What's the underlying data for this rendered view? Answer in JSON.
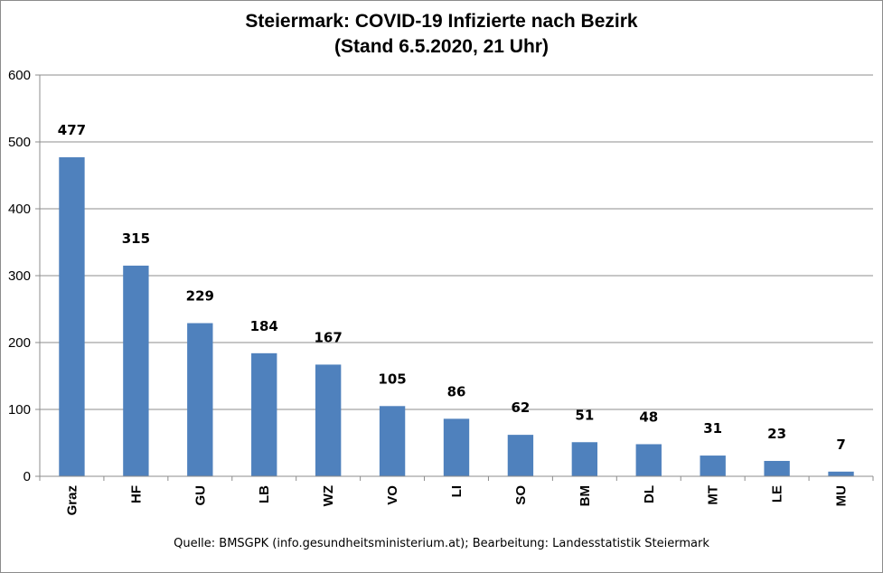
{
  "chart_data": {
    "type": "bar",
    "title_line1": "Steiermark:  COVID-19 Infizierte nach Bezirk",
    "title_line2": "(Stand 6.5.2020, 21 Uhr)",
    "categories": [
      "Graz",
      "HF",
      "GU",
      "LB",
      "WZ",
      "VO",
      "LI",
      "SO",
      "BM",
      "DL",
      "MT",
      "LE",
      "MU"
    ],
    "values": [
      477,
      315,
      229,
      184,
      167,
      105,
      86,
      62,
      51,
      48,
      31,
      23,
      7
    ],
    "ylim": [
      0,
      600
    ],
    "yticks": [
      0,
      100,
      200,
      300,
      400,
      500,
      600
    ],
    "grid": true,
    "legend": "none",
    "bar_color": "#4f81bd",
    "source": "Quelle: BMSGPK (info.gesundheitsministerium.at); Bearbeitung: Landesstatistik Steiermark"
  }
}
